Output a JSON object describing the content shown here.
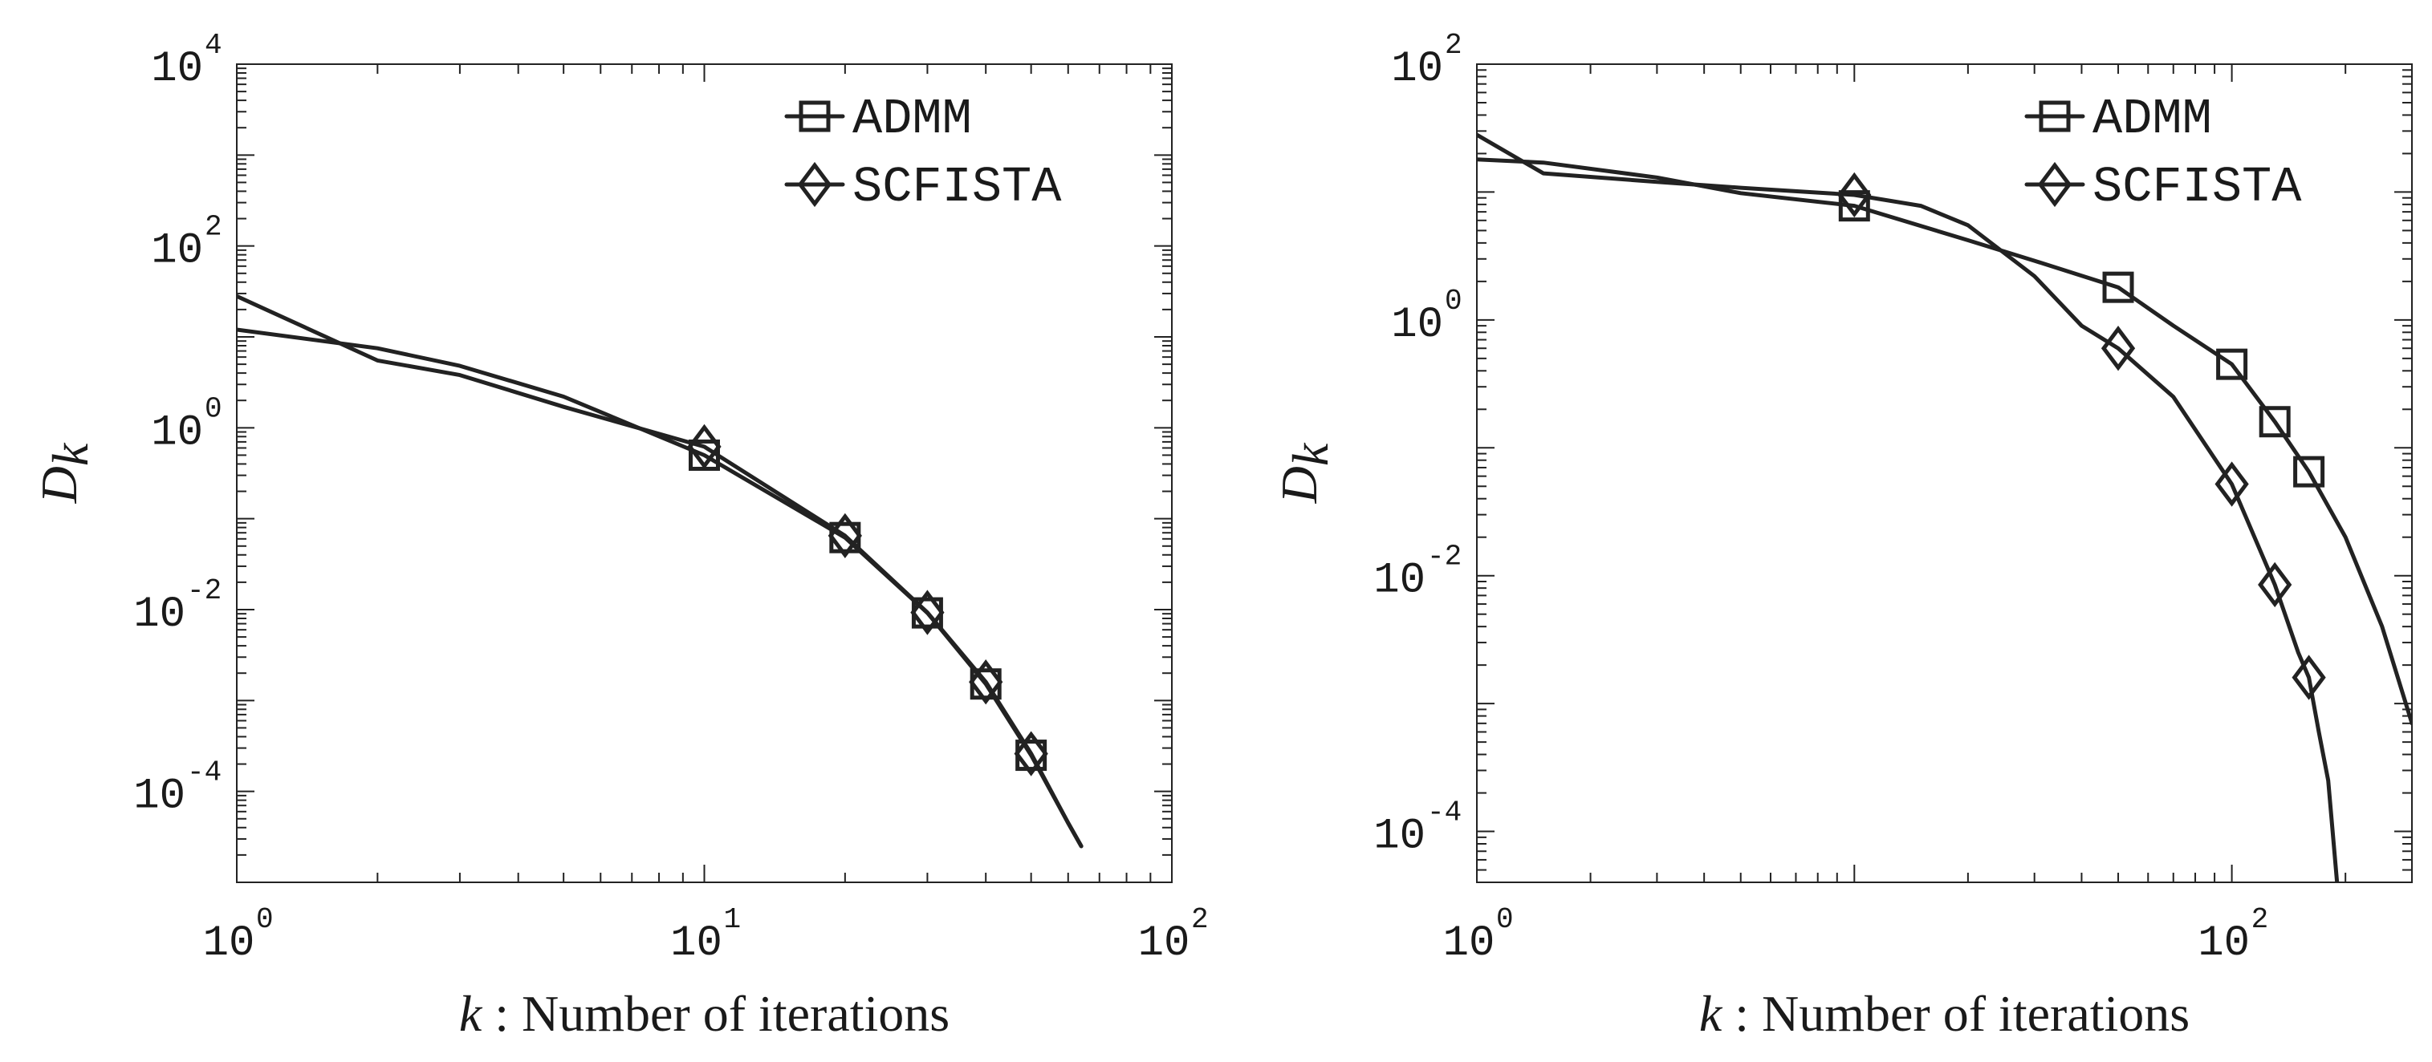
{
  "chart_data": [
    {
      "type": "line",
      "xscale": "log",
      "yscale": "log",
      "xlim": [
        1,
        100
      ],
      "ylim": [
        1e-05,
        10000
      ],
      "xticks": [
        1,
        10,
        100
      ],
      "yticks": [
        0.0001,
        0.01,
        1,
        100,
        10000
      ],
      "xtick_labels": [
        {
          "base": "10",
          "exp": "0"
        },
        {
          "base": "10",
          "exp": "1"
        },
        {
          "base": "10",
          "exp": "2"
        }
      ],
      "ytick_labels": [
        {
          "base": "10",
          "exp": "-4"
        },
        {
          "base": "10",
          "exp": "-2"
        },
        {
          "base": "10",
          "exp": "0"
        },
        {
          "base": "10",
          "exp": "2"
        },
        {
          "base": "10",
          "exp": "4"
        }
      ],
      "xlabel": {
        "symbol": "k",
        "text": " : Number of iterations"
      },
      "ylabel": {
        "symbol": "D",
        "sub": "k"
      },
      "legend": {
        "position": "top-right"
      },
      "series": [
        {
          "name": "ADMM",
          "marker": "square",
          "x": [
            1,
            2,
            3,
            5,
            10,
            20,
            30,
            40,
            50,
            60,
            64
          ],
          "y": [
            12,
            7.5,
            4.8,
            2.2,
            0.5,
            0.062,
            0.0092,
            0.00152,
            0.00025,
            4.5e-05,
            2.5e-05
          ],
          "marker_x": [
            10,
            20,
            30,
            40,
            50
          ],
          "marker_y": [
            0.5,
            0.062,
            0.0092,
            0.00152,
            0.00025
          ]
        },
        {
          "name": "SCFISTA",
          "marker": "diamond",
          "x": [
            1,
            2,
            3,
            5,
            10,
            20,
            30,
            40,
            50,
            60,
            64
          ],
          "y": [
            28,
            5.5,
            3.8,
            1.7,
            0.62,
            0.065,
            0.0093,
            0.0016,
            0.00026,
            4.5e-05,
            2.5e-05
          ],
          "marker_x": [
            10,
            20,
            30,
            40,
            50
          ],
          "marker_y": [
            0.62,
            0.065,
            0.0093,
            0.0016,
            0.00026
          ]
        }
      ]
    },
    {
      "type": "line",
      "xscale": "log",
      "yscale": "log",
      "xlim": [
        1,
        300
      ],
      "ylim": [
        4e-05,
        100
      ],
      "xticks": [
        1,
        100
      ],
      "yticks": [
        0.0001,
        0.01,
        1,
        100
      ],
      "xtick_labels": [
        {
          "base": "10",
          "exp": "0"
        },
        {
          "base": "10",
          "exp": "2"
        }
      ],
      "ytick_labels": [
        {
          "base": "10",
          "exp": "-4"
        },
        {
          "base": "10",
          "exp": "-2"
        },
        {
          "base": "10",
          "exp": "0"
        },
        {
          "base": "10",
          "exp": "2"
        }
      ],
      "xlabel": {
        "symbol": "k",
        "text": " : Number of iterations"
      },
      "ylabel": {
        "symbol": "D",
        "sub": "k"
      },
      "legend": {
        "position": "top-right"
      },
      "series": [
        {
          "name": "ADMM",
          "marker": "square",
          "x": [
            1,
            1.5,
            3,
            5,
            10,
            20,
            30,
            50,
            70,
            100,
            130,
            160,
            200,
            250,
            300
          ],
          "y": [
            18,
            17,
            13,
            9.8,
            7.8,
            4.2,
            2.9,
            1.8,
            0.9,
            0.45,
            0.16,
            0.065,
            0.02,
            0.004,
            0.0007
          ],
          "marker_x": [
            10,
            50,
            100,
            130,
            160
          ],
          "marker_y": [
            7.8,
            1.8,
            0.45,
            0.16,
            0.065
          ]
        },
        {
          "name": "SCFISTA",
          "marker": "diamond",
          "x": [
            1,
            1.5,
            3,
            5,
            10,
            15,
            20,
            30,
            40,
            50,
            70,
            100,
            130,
            150,
            160,
            170,
            180,
            190
          ],
          "y": [
            28,
            14,
            12,
            10.8,
            9.5,
            7.8,
            5.5,
            2.2,
            0.9,
            0.6,
            0.25,
            0.052,
            0.0085,
            0.0025,
            0.0016,
            0.0006,
            0.00025,
            4e-05
          ],
          "marker_x": [
            10,
            50,
            100,
            130,
            160
          ],
          "marker_y": [
            9.5,
            0.6,
            0.052,
            0.0085,
            0.0016
          ]
        }
      ]
    }
  ]
}
